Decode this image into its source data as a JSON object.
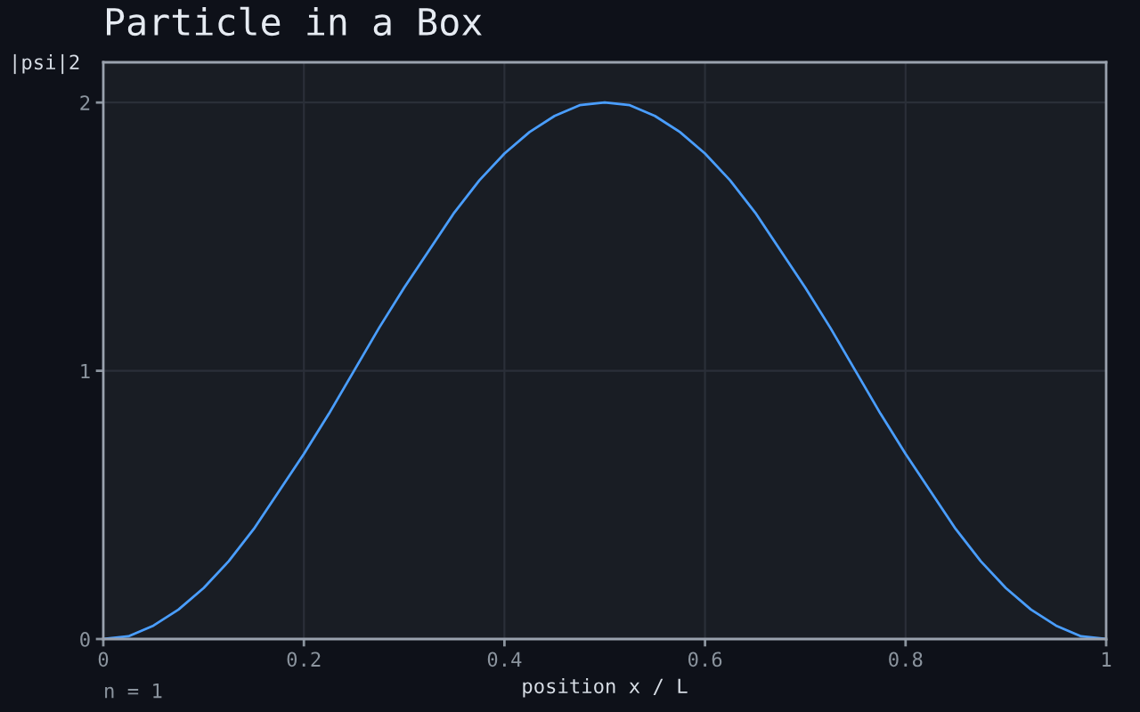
{
  "chart_data": {
    "type": "line",
    "title": "Particle in a Box",
    "xlabel": "position x / L",
    "ylabel": "|psi|2",
    "annotations": [
      "n = 1"
    ],
    "x": [
      0,
      0.025,
      0.05,
      0.075,
      0.1,
      0.125,
      0.15,
      0.175,
      0.2,
      0.225,
      0.25,
      0.275,
      0.3,
      0.325,
      0.35,
      0.375,
      0.4,
      0.425,
      0.45,
      0.475,
      0.5,
      0.525,
      0.55,
      0.575,
      0.6,
      0.625,
      0.65,
      0.675,
      0.7,
      0.725,
      0.75,
      0.775,
      0.8,
      0.825,
      0.85,
      0.875,
      0.9,
      0.925,
      0.95,
      0.975,
      1
    ],
    "series": [
      {
        "color": "#4a9eff",
        "values": [
          0,
          0.01,
          0.05,
          0.11,
          0.19,
          0.29,
          0.41,
          0.55,
          0.69,
          0.84,
          1.0,
          1.16,
          1.31,
          1.45,
          1.59,
          1.71,
          1.81,
          1.89,
          1.95,
          1.99,
          2.0,
          1.99,
          1.95,
          1.89,
          1.81,
          1.71,
          1.59,
          1.45,
          1.31,
          1.16,
          1.0,
          0.84,
          0.69,
          0.55,
          0.41,
          0.29,
          0.19,
          0.11,
          0.05,
          0.01,
          0
        ]
      }
    ],
    "xlim": [
      0,
      1
    ],
    "ylim": [
      0,
      2.15
    ],
    "xticks": [
      0,
      0.2,
      0.4,
      0.6,
      0.8,
      1
    ],
    "yticks": [
      0,
      1,
      2
    ],
    "grid": true
  }
}
